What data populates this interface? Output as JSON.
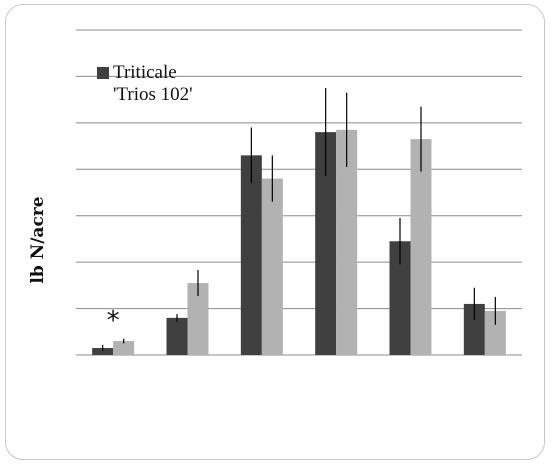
{
  "chart_data": {
    "type": "bar",
    "ylabel": "lb N/acre",
    "ylim": [
      0,
      70
    ],
    "yticks": [
      0,
      10,
      20,
      30,
      40,
      50,
      60,
      70
    ],
    "grid": true,
    "legend_position": "top-left",
    "colors": {
      "dark": "#404040",
      "light": "#b2b2b2",
      "grid": "#8c8c8c",
      "error": "#000000"
    },
    "series": [
      {
        "name": "Triticale 'Trios 102'",
        "values": [
          1.5,
          8,
          43,
          48,
          24.5,
          11
        ],
        "errors": [
          0.7,
          0.8,
          6,
          9.5,
          5,
          3.5
        ]
      },
      {
        "name": "",
        "values": [
          3,
          15.5,
          38,
          48.5,
          46.5,
          9.5
        ],
        "errors": [
          0.5,
          2.8,
          5,
          8,
          7,
          3
        ]
      }
    ],
    "annotations": [
      {
        "text": "*",
        "group": 0
      }
    ]
  }
}
